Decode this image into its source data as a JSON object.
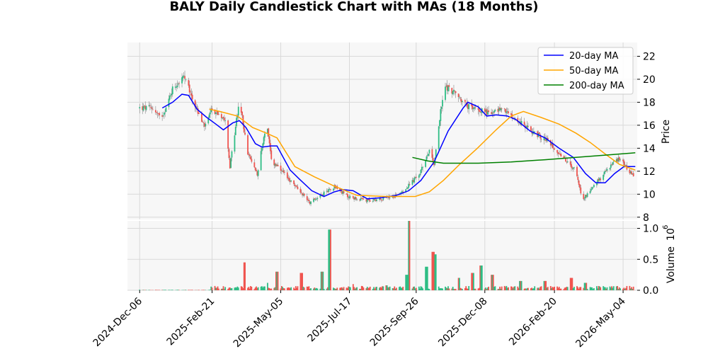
{
  "chart_data": {
    "type": "candlestick",
    "title": "BALY Daily Candlestick Chart with MAs (18 Months)",
    "price_axis": {
      "label": "Price",
      "ylim": [
        7.8,
        23.2
      ],
      "ticks": [
        8,
        10,
        12,
        14,
        16,
        18,
        20,
        22
      ]
    },
    "volume_axis": {
      "label": "Volume",
      "exponent_label": "1e6",
      "exponent_base": "10",
      "exponent_power": "6",
      "ylim": [
        0,
        1.12
      ],
      "ticks": [
        "0.0",
        "0.5",
        "1.0"
      ],
      "tick_values": [
        0,
        0.5,
        1.0
      ],
      "unit": "millions"
    },
    "x_axis": {
      "range": [
        "2024-11-23",
        "2026-05-19"
      ],
      "tick_labels": [
        "2024-Dec-06",
        "2025-Feb-21",
        "2025-May-05",
        "2025-Jul-17",
        "2025-Sep-26",
        "2025-Dec-08",
        "2026-Feb-20",
        "2026-May-04"
      ],
      "tick_dates": [
        "2024-12-06",
        "2025-02-21",
        "2025-05-05",
        "2025-07-17",
        "2025-09-26",
        "2025-12-08",
        "2026-02-20",
        "2026-05-04"
      ]
    },
    "grid": true,
    "legend_position": "top-right",
    "colors": {
      "up": "#2ebd85",
      "down": "#f0544f",
      "wick": "#888888",
      "background": "#f7f7f7",
      "grid": "#d9d9d9"
    },
    "price_keyframes": [
      [
        "2024-12-06",
        17.5
      ],
      [
        "2024-12-20",
        17.5
      ],
      [
        "2024-12-28",
        16.6
      ],
      [
        "2025-01-03",
        17.5
      ],
      [
        "2025-01-10",
        19.2
      ],
      [
        "2025-01-22",
        20.2
      ],
      [
        "2025-02-10",
        16.3
      ],
      [
        "2025-02-14",
        15.9
      ],
      [
        "2025-02-21",
        17.4
      ],
      [
        "2025-03-07",
        16.6
      ],
      [
        "2025-03-12",
        12.4
      ],
      [
        "2025-03-22",
        18.2
      ],
      [
        "2025-03-31",
        13.5
      ],
      [
        "2025-04-10",
        11.8
      ],
      [
        "2025-04-20",
        16.3
      ],
      [
        "2025-04-25",
        12.9
      ],
      [
        "2025-05-15",
        11.2
      ],
      [
        "2025-05-25",
        10.3
      ],
      [
        "2025-06-05",
        9.3
      ],
      [
        "2025-06-20",
        10.1
      ],
      [
        "2025-07-01",
        10.7
      ],
      [
        "2025-07-15",
        9.8
      ],
      [
        "2025-08-05",
        9.4
      ],
      [
        "2025-09-02",
        9.8
      ],
      [
        "2025-09-15",
        10.5
      ],
      [
        "2025-09-30",
        11.8
      ],
      [
        "2025-10-10",
        13.9
      ],
      [
        "2025-10-15",
        12.6
      ],
      [
        "2025-10-22",
        17.2
      ],
      [
        "2025-10-27",
        19.4
      ],
      [
        "2025-11-05",
        18.9
      ],
      [
        "2025-11-20",
        17.6
      ],
      [
        "2025-12-01",
        17.4
      ],
      [
        "2025-12-16",
        17.0
      ],
      [
        "2025-12-25",
        17.5
      ],
      [
        "2026-01-10",
        16.5
      ],
      [
        "2026-01-25",
        15.6
      ],
      [
        "2026-02-15",
        14.5
      ],
      [
        "2026-03-05",
        12.8
      ],
      [
        "2026-03-15",
        12.0
      ],
      [
        "2026-03-22",
        9.5
      ],
      [
        "2026-04-01",
        10.6
      ],
      [
        "2026-04-10",
        11.4
      ],
      [
        "2026-04-22",
        12.6
      ],
      [
        "2026-05-01",
        13.2
      ],
      [
        "2026-05-10",
        12.0
      ],
      [
        "2026-05-17",
        11.4
      ]
    ],
    "volume_spikes_millions": [
      [
        "2024-12-06",
        0.01
      ],
      [
        "2025-02-21",
        0.03
      ],
      [
        "2025-03-28",
        0.45
      ],
      [
        "2025-04-20",
        0.12
      ],
      [
        "2025-05-01",
        0.3
      ],
      [
        "2025-05-27",
        0.28
      ],
      [
        "2025-06-18",
        0.3
      ],
      [
        "2025-06-26",
        0.98
      ],
      [
        "2025-07-20",
        0.1
      ],
      [
        "2025-08-25",
        0.08
      ],
      [
        "2025-09-16",
        0.25
      ],
      [
        "2025-09-19",
        1.12
      ],
      [
        "2025-10-07",
        0.38
      ],
      [
        "2025-10-14",
        0.62
      ],
      [
        "2025-10-17",
        0.58
      ],
      [
        "2025-11-10",
        0.2
      ],
      [
        "2025-11-25",
        0.28
      ],
      [
        "2025-12-04",
        0.4
      ],
      [
        "2025-12-16",
        0.25
      ],
      [
        "2026-01-15",
        0.15
      ],
      [
        "2026-02-10",
        0.15
      ],
      [
        "2026-03-10",
        0.2
      ],
      [
        "2026-03-25",
        0.12
      ],
      [
        "2026-05-10",
        0.05
      ]
    ],
    "series": [
      {
        "name": "20-day MA",
        "color": "#0000ff",
        "points": [
          [
            "2024-12-30",
            17.5
          ],
          [
            "2025-01-10",
            18.0
          ],
          [
            "2025-01-20",
            18.7
          ],
          [
            "2025-01-27",
            18.6
          ],
          [
            "2025-02-05",
            17.4
          ],
          [
            "2025-02-15",
            16.7
          ],
          [
            "2025-02-25",
            16.1
          ],
          [
            "2025-03-05",
            15.6
          ],
          [
            "2025-03-15",
            16.2
          ],
          [
            "2025-03-22",
            16.4
          ],
          [
            "2025-03-29",
            15.8
          ],
          [
            "2025-04-08",
            14.4
          ],
          [
            "2025-04-15",
            14.1
          ],
          [
            "2025-04-25",
            14.2
          ],
          [
            "2025-05-01",
            14.2
          ],
          [
            "2025-05-15",
            12.1
          ],
          [
            "2025-05-25",
            11.3
          ],
          [
            "2025-06-07",
            10.3
          ],
          [
            "2025-06-20",
            9.8
          ],
          [
            "2025-07-01",
            10.2
          ],
          [
            "2025-07-10",
            10.4
          ],
          [
            "2025-07-21",
            10.3
          ],
          [
            "2025-08-05",
            9.6
          ],
          [
            "2025-08-20",
            9.7
          ],
          [
            "2025-09-05",
            9.9
          ],
          [
            "2025-09-18",
            10.3
          ],
          [
            "2025-10-01",
            11.2
          ],
          [
            "2025-10-15",
            12.8
          ],
          [
            "2025-10-30",
            15.5
          ],
          [
            "2025-11-15",
            17.5
          ],
          [
            "2025-11-20",
            18.0
          ],
          [
            "2025-12-01",
            17.6
          ],
          [
            "2025-12-10",
            16.8
          ],
          [
            "2025-12-20",
            16.9
          ],
          [
            "2026-01-01",
            16.8
          ],
          [
            "2026-01-10",
            16.5
          ],
          [
            "2026-01-25",
            15.5
          ],
          [
            "2026-02-10",
            14.9
          ],
          [
            "2026-02-25",
            14.0
          ],
          [
            "2026-03-12",
            13.2
          ],
          [
            "2026-03-25",
            11.8
          ],
          [
            "2026-04-05",
            11.0
          ],
          [
            "2026-04-15",
            11.0
          ],
          [
            "2026-04-25",
            11.8
          ],
          [
            "2026-05-05",
            12.4
          ],
          [
            "2026-05-17",
            12.4
          ]
        ]
      },
      {
        "name": "50-day MA",
        "color": "#ffa500",
        "points": [
          [
            "2025-02-18",
            17.4
          ],
          [
            "2025-03-01",
            17.2
          ],
          [
            "2025-03-20",
            16.8
          ],
          [
            "2025-04-05",
            15.8
          ],
          [
            "2025-04-20",
            15.3
          ],
          [
            "2025-05-01",
            14.9
          ],
          [
            "2025-05-20",
            12.4
          ],
          [
            "2025-06-10",
            11.5
          ],
          [
            "2025-07-01",
            10.7
          ],
          [
            "2025-07-25",
            9.9
          ],
          [
            "2025-08-25",
            9.8
          ],
          [
            "2025-09-25",
            9.8
          ],
          [
            "2025-10-10",
            10.2
          ],
          [
            "2025-10-25",
            11.2
          ],
          [
            "2025-11-10",
            12.5
          ],
          [
            "2025-11-30",
            14.0
          ],
          [
            "2025-12-20",
            15.6
          ],
          [
            "2026-01-05",
            16.8
          ],
          [
            "2026-01-18",
            17.2
          ],
          [
            "2026-02-05",
            16.7
          ],
          [
            "2026-02-25",
            16.1
          ],
          [
            "2026-03-15",
            15.3
          ],
          [
            "2026-03-30",
            14.5
          ],
          [
            "2026-04-15",
            13.5
          ],
          [
            "2026-04-30",
            12.6
          ],
          [
            "2026-05-17",
            12.1
          ]
        ]
      },
      {
        "name": "200-day MA",
        "color": "#008000",
        "points": [
          [
            "2025-09-22",
            13.2
          ],
          [
            "2025-10-08",
            12.9
          ],
          [
            "2025-10-25",
            12.7
          ],
          [
            "2025-12-01",
            12.7
          ],
          [
            "2026-01-05",
            12.8
          ],
          [
            "2026-02-10",
            13.0
          ],
          [
            "2026-03-15",
            13.2
          ],
          [
            "2026-04-15",
            13.4
          ],
          [
            "2026-05-17",
            13.6
          ]
        ]
      }
    ]
  }
}
